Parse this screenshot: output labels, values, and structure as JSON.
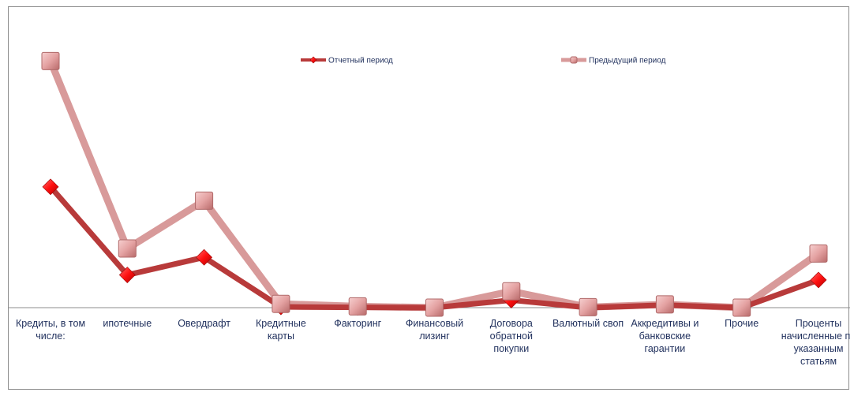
{
  "chart_data": {
    "type": "line",
    "categories": [
      [
        "Кредиты, в том",
        "числе:"
      ],
      [
        "ипотечные"
      ],
      [
        "Овердрафт"
      ],
      [
        "Кредитные",
        "карты"
      ],
      [
        "Факторинг"
      ],
      [
        "Финансовый",
        "лизинг"
      ],
      [
        "Договора",
        "обратной",
        "покупки"
      ],
      [
        "Валютный своп"
      ],
      [
        "Аккредитивы и",
        "банковские",
        "гарантии"
      ],
      [
        "Прочие"
      ],
      [
        "Проценты",
        "начисленные по",
        "указанным",
        "статьям"
      ]
    ],
    "series": [
      {
        "name": "Отчетный период",
        "values": [
          48,
          13,
          20,
          0.3,
          0.1,
          0,
          3,
          0,
          1,
          0,
          11
        ],
        "color": "#b83a3a",
        "marker": "diamond",
        "marker_color": "#ff1a1a"
      },
      {
        "name": "Предыдущий период",
        "values": [
          98,
          23.5,
          42.5,
          1.5,
          0.5,
          0,
          6.5,
          0.2,
          1.3,
          0,
          21.5
        ],
        "color": "#d89a9a",
        "marker": "square",
        "marker_color": "#e8a5a5"
      }
    ],
    "ylim": [
      0,
      100
    ],
    "grid": false,
    "legend_position": "top"
  }
}
